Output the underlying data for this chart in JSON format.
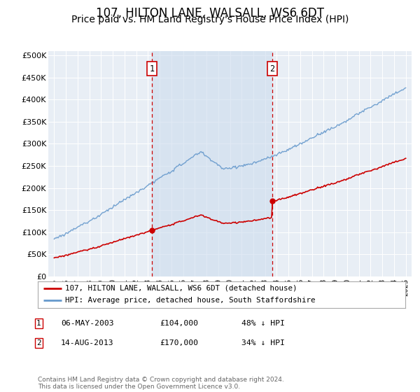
{
  "title": "107, HILTON LANE, WALSALL, WS6 6DT",
  "subtitle": "Price paid vs. HM Land Registry's House Price Index (HPI)",
  "title_fontsize": 12,
  "subtitle_fontsize": 10,
  "plot_bg_color": "#dce8f5",
  "outside_bg_color": "#e8eef5",
  "ylabel_ticks": [
    "£0",
    "£50K",
    "£100K",
    "£150K",
    "£200K",
    "£250K",
    "£300K",
    "£350K",
    "£400K",
    "£450K",
    "£500K"
  ],
  "ytick_values": [
    0,
    50000,
    100000,
    150000,
    200000,
    250000,
    300000,
    350000,
    400000,
    450000,
    500000
  ],
  "ylim": [
    0,
    510000
  ],
  "hpi_color": "#6699cc",
  "price_color": "#cc0000",
  "sale1_date_x": 2003.35,
  "sale1_price": 104000,
  "sale2_date_x": 2013.62,
  "sale2_price": 170000,
  "vline_color": "#cc0000",
  "legend_label_price": "107, HILTON LANE, WALSALL, WS6 6DT (detached house)",
  "legend_label_hpi": "HPI: Average price, detached house, South Staffordshire",
  "table_entries": [
    {
      "num": "1",
      "date": "06-MAY-2003",
      "price": "£104,000",
      "pct": "48% ↓ HPI"
    },
    {
      "num": "2",
      "date": "14-AUG-2013",
      "price": "£170,000",
      "pct": "34% ↓ HPI"
    }
  ],
  "footer": "Contains HM Land Registry data © Crown copyright and database right 2024.\nThis data is licensed under the Open Government Licence v3.0.",
  "xmin": 1994.5,
  "xmax": 2025.5
}
